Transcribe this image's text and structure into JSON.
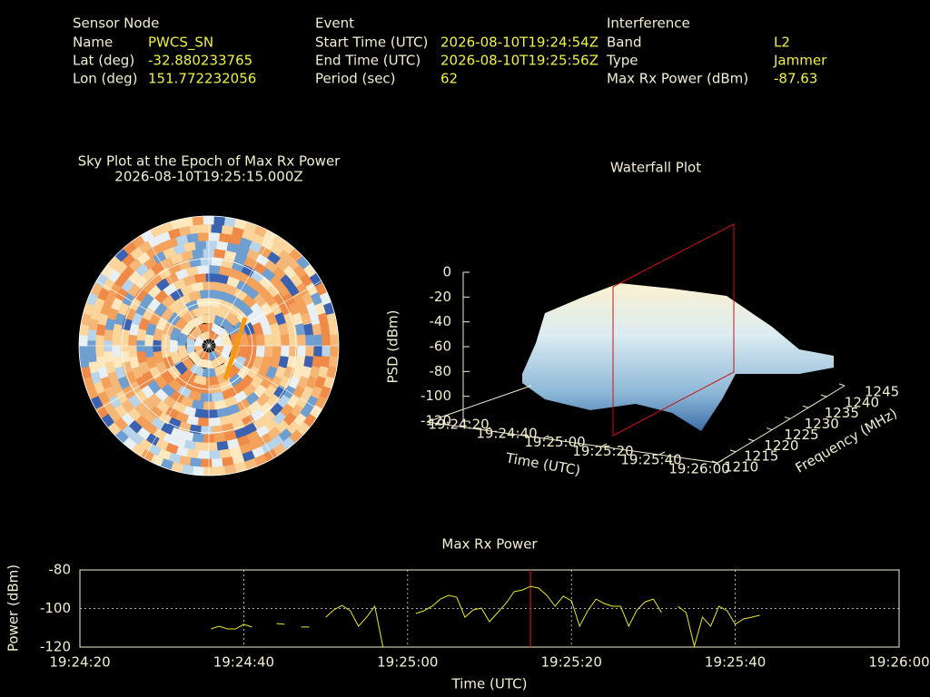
{
  "header": {
    "sensor": {
      "title": "Sensor Node",
      "rows": [
        [
          "Name",
          "PWCS_SN"
        ],
        [
          "Lat (deg)",
          "-32.880233765"
        ],
        [
          "Lon (deg)",
          "151.772232056"
        ]
      ]
    },
    "event": {
      "title": "Event",
      "rows": [
        [
          "Start Time (UTC)",
          "2026-08-10T19:24:54Z"
        ],
        [
          "End Time (UTC)",
          "2026-08-10T19:25:56Z"
        ],
        [
          "Period (sec)",
          "62"
        ]
      ]
    },
    "interference": {
      "title": "Interference",
      "rows": [
        [
          "Band",
          "L2"
        ],
        [
          "Type",
          "Jammer"
        ],
        [
          "Max Rx Power (dBm)",
          "-87.63"
        ]
      ]
    }
  },
  "chart_data": [
    {
      "type": "polar-heatmap",
      "title": "Sky Plot at the Epoch of Max Rx Power",
      "subtitle": "2026-08-10T19:25:15.000Z"
    },
    {
      "type": "surface",
      "title": "Waterfall Plot",
      "zlabel": "PSD (dBm)",
      "zlim": [
        -120,
        0
      ],
      "zticks": [
        0,
        -20,
        -40,
        -60,
        -80,
        -100,
        -120
      ],
      "xlabel": "Time (UTC)",
      "xlim": [
        "19:24:20",
        "19:26:00"
      ],
      "xticks": [
        "19:24:20",
        "19:24:40",
        "19:25:00",
        "19:25:20",
        "19:25:40",
        "19:26:00"
      ],
      "ylabel": "Frequency (MHz)",
      "ylim": [
        1210,
        1245
      ],
      "yticks": [
        1210,
        1215,
        1220,
        1225,
        1230,
        1235,
        1240,
        1245
      ]
    },
    {
      "type": "line",
      "title": "Max Rx Power",
      "xlabel": "Time (UTC)",
      "ylabel": "Power (dBm)",
      "xlim": [
        "19:24:20",
        "19:26:00"
      ],
      "xticks": [
        "19:24:20",
        "19:24:40",
        "19:25:00",
        "19:25:20",
        "19:25:40",
        "19:26:00"
      ],
      "ylim": [
        -120,
        -80
      ],
      "yticks": [
        -80,
        -100,
        -120
      ],
      "grid": true,
      "marker": "19:25:15",
      "marker_color": "#d01010",
      "x": [
        "19:24:36",
        "19:24:37",
        "19:24:38",
        "19:24:39",
        "19:24:40",
        "19:24:41",
        "19:24:42",
        "19:24:43",
        "19:24:44",
        "19:24:45",
        "19:24:46",
        "19:24:47",
        "19:24:48",
        "19:24:49",
        "19:24:50",
        "19:24:51",
        "19:24:52",
        "19:24:53",
        "19:24:54",
        "19:24:55",
        "19:24:56",
        "19:24:57",
        "19:24:58",
        "19:24:59",
        "19:25:00",
        "19:25:01",
        "19:25:02",
        "19:25:03",
        "19:25:04",
        "19:25:05",
        "19:25:06",
        "19:25:07",
        "19:25:08",
        "19:25:09",
        "19:25:10",
        "19:25:11",
        "19:25:12",
        "19:25:13",
        "19:25:14",
        "19:25:15",
        "19:25:16",
        "19:25:17",
        "19:25:18",
        "19:25:19",
        "19:25:20",
        "19:25:21",
        "19:25:22",
        "19:25:23",
        "19:25:24",
        "19:25:25",
        "19:25:26",
        "19:25:27",
        "19:25:28",
        "19:25:29",
        "19:25:30",
        "19:25:31",
        "19:25:32",
        "19:25:33",
        "19:25:34",
        "19:25:35",
        "19:25:36",
        "19:25:37",
        "19:25:38",
        "19:25:39",
        "19:25:40",
        "19:25:41",
        "19:25:42",
        "19:25:43"
      ],
      "series": [
        {
          "color": "#e8e820",
          "values": [
            -110.6,
            -109.2,
            -110.6,
            -110.6,
            -108.2,
            -109.6,
            null,
            null,
            -107.8,
            -108.2,
            null,
            -109.6,
            -109.6,
            null,
            -104.5,
            -100.7,
            -98.4,
            -101.2,
            -109.2,
            -104.5,
            -98.8,
            -120,
            null,
            null,
            null,
            -102.6,
            -101.2,
            -98.8,
            -95.1,
            -93.2,
            -94.1,
            -104.5,
            -100.7,
            -99.8,
            -106.8,
            -102.1,
            -97.4,
            -91.3,
            -90.4,
            -88.5,
            -89.4,
            -93.2,
            -98.8,
            -93.6,
            -96,
            -109.2,
            -101.2,
            -95.1,
            -97.4,
            -98.8,
            -98.8,
            -109.2,
            -100.7,
            -96.5,
            -95.1,
            -102.1,
            null,
            -98.8,
            -102.1,
            -119.5,
            -104.5,
            -109.2,
            -98.8,
            -101.2,
            -108.2,
            -105.4,
            -104.5,
            -103.5
          ]
        }
      ]
    }
  ]
}
